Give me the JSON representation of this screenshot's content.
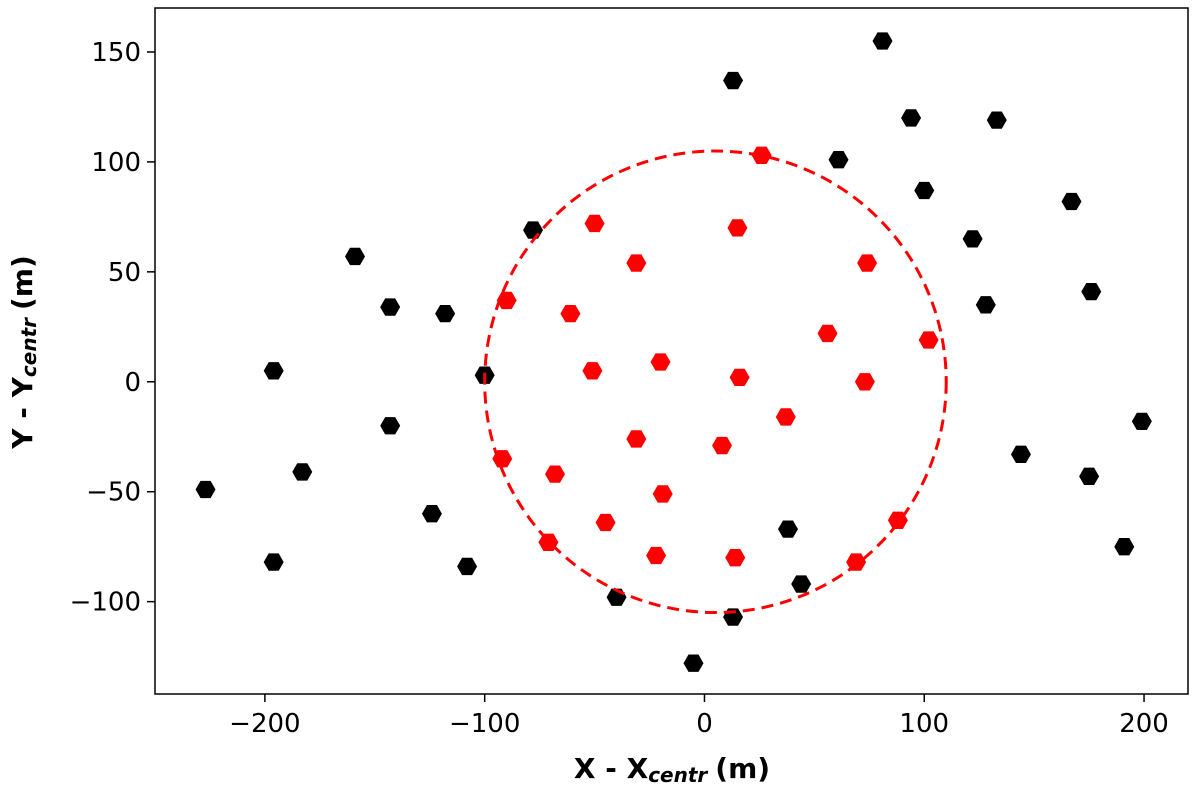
{
  "chart_data": {
    "type": "scatter",
    "xlabel": {
      "main": "X - X",
      "sub": "centr",
      "unit": "(m)"
    },
    "ylabel": {
      "main": "Y - Y",
      "sub": "centr",
      "unit": "(m)"
    },
    "xlim": [
      -250,
      220
    ],
    "ylim": [
      -142,
      170
    ],
    "xticks": [
      -200,
      -100,
      0,
      100,
      200
    ],
    "yticks": [
      -100,
      -50,
      0,
      50,
      100,
      150
    ],
    "xtick_labels": [
      "−200",
      "−100",
      "0",
      "100",
      "200"
    ],
    "ytick_labels": [
      "−100",
      "−50",
      "0",
      "50",
      "100",
      "150"
    ],
    "grid": false,
    "marker": "hexagon",
    "colors": {
      "outside": "#000000",
      "inside": "#ff0000",
      "circle": "#ff0000",
      "center": "#ffffff"
    },
    "circle": {
      "center": [
        5,
        0
      ],
      "radius": 105
    },
    "center_marker": [
      5,
      0
    ],
    "series": [
      {
        "points": [
          [
            13,
            137
          ],
          [
            81,
            155
          ],
          [
            94,
            120
          ],
          [
            133,
            119
          ],
          [
            61,
            101
          ],
          [
            100,
            87
          ],
          [
            167,
            82
          ],
          [
            122,
            65
          ],
          [
            176,
            41
          ],
          [
            128,
            35
          ],
          [
            199,
            -18
          ],
          [
            144,
            -33
          ],
          [
            175,
            -43
          ],
          [
            191,
            -75
          ],
          [
            38,
            -67
          ],
          [
            44,
            -92
          ],
          [
            13,
            -107
          ],
          [
            -5,
            -128
          ],
          [
            -40,
            -98
          ],
          [
            -108,
            -84
          ],
          [
            -124,
            -60
          ],
          [
            -196,
            -82
          ],
          [
            -183,
            -41
          ],
          [
            -227,
            -49
          ],
          [
            -143,
            -20
          ],
          [
            -196,
            5
          ],
          [
            -100,
            3
          ],
          [
            -143,
            34
          ],
          [
            -118,
            31
          ],
          [
            -159,
            57
          ],
          [
            -78,
            69
          ]
        ]
      },
      {
        "points": [
          [
            26,
            103
          ],
          [
            -50,
            72
          ],
          [
            15,
            70
          ],
          [
            -31,
            54
          ],
          [
            74,
            54
          ],
          [
            -90,
            37
          ],
          [
            -61,
            31
          ],
          [
            56,
            22
          ],
          [
            102,
            19
          ],
          [
            -20,
            9
          ],
          [
            -51,
            5
          ],
          [
            16,
            2
          ],
          [
            73,
            0
          ],
          [
            37,
            -16
          ],
          [
            -31,
            -26
          ],
          [
            8,
            -29
          ],
          [
            -92,
            -35
          ],
          [
            -68,
            -42
          ],
          [
            -19,
            -51
          ],
          [
            -45,
            -64
          ],
          [
            88,
            -63
          ],
          [
            -71,
            -73
          ],
          [
            -22,
            -79
          ],
          [
            14,
            -80
          ],
          [
            69,
            -82
          ]
        ]
      }
    ]
  }
}
